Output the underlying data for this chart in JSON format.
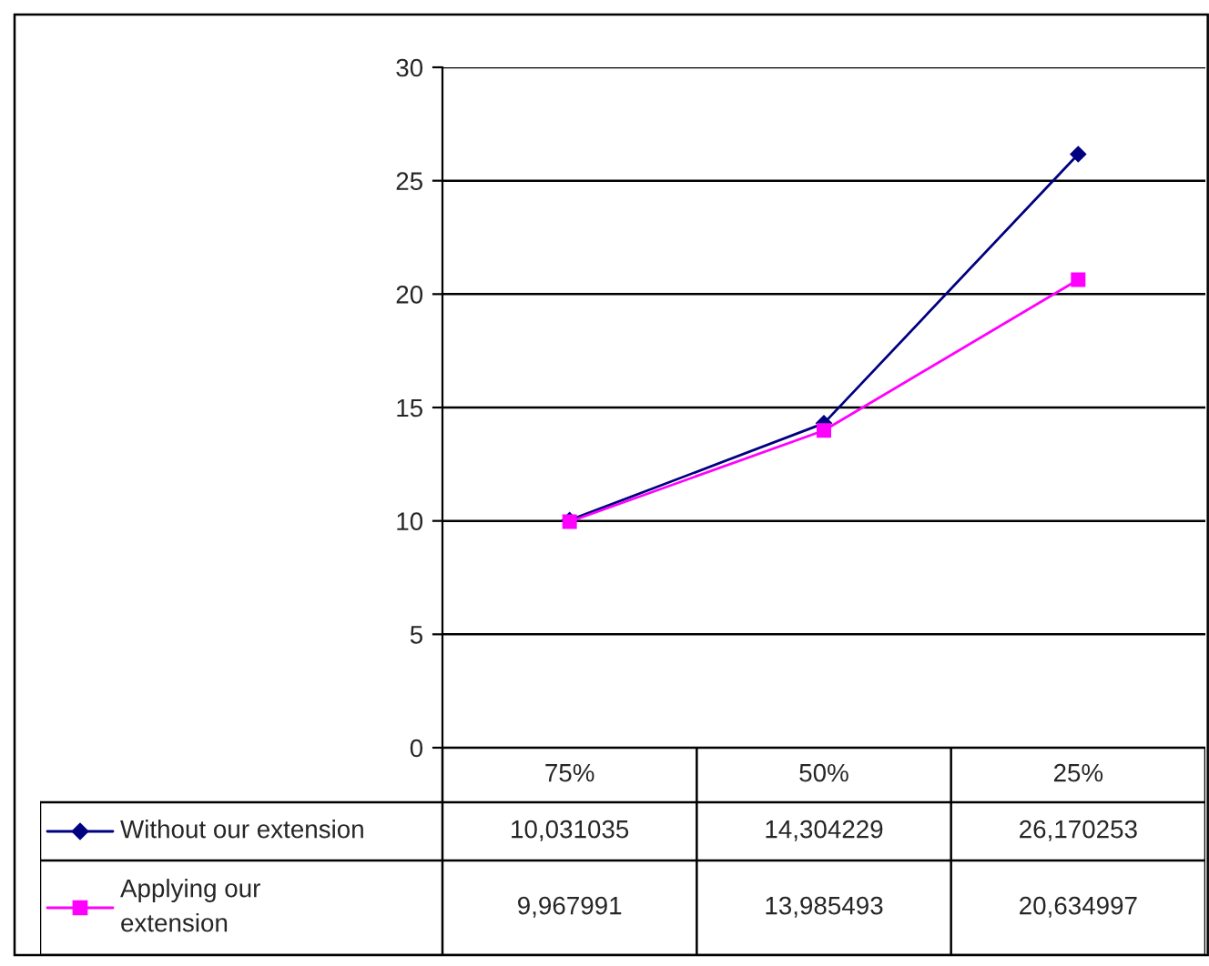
{
  "chart_data": {
    "type": "line",
    "categories": [
      "75%",
      "50%",
      "25%"
    ],
    "series": [
      {
        "name": "Without our extension",
        "color": "#000080",
        "marker": "diamond",
        "values": [
          10.031035,
          14.304229,
          26.170253
        ],
        "value_labels": [
          "10,031035",
          "14,304229",
          "26,170253"
        ]
      },
      {
        "name": "Applying our\nextension",
        "color": "#ff00ff",
        "marker": "square",
        "values": [
          9.967991,
          13.985493,
          20.634997
        ],
        "value_labels": [
          "9,967991",
          "13,985493",
          "20,634997"
        ]
      }
    ],
    "ylim": [
      0,
      30
    ],
    "yticks": [
      0,
      5,
      10,
      15,
      20,
      25,
      30
    ],
    "grid": "y",
    "legend": "bottom"
  }
}
